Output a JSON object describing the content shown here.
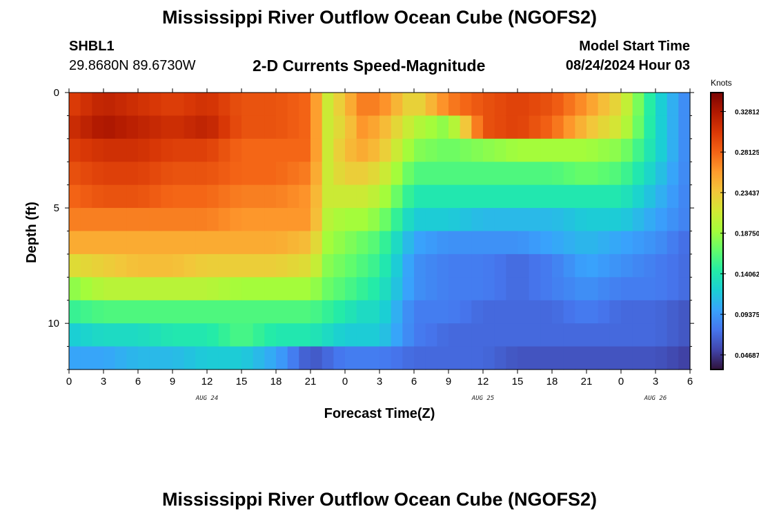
{
  "header": {
    "title": "Mississippi River Outflow Ocean Cube (NGOFS2)",
    "station": "SHBL1",
    "coordinates": "29.8680N  89.6730W",
    "subtitle": "2-D Currents Speed-Magnitude",
    "model_start_label": "Model Start Time",
    "model_start_value": "08/24/2024 Hour 03"
  },
  "footer": {
    "title": "Mississippi River Outflow Ocean Cube (NGOFS2)"
  },
  "chart_data": {
    "type": "heatmap",
    "title": "2-D Currents Speed-Magnitude",
    "xlabel": "Forecast Time(Z)",
    "ylabel": "Depth (ft)",
    "colorbar_label": "Knots",
    "x_hours": [
      0,
      3,
      6,
      9,
      12,
      15,
      18,
      21,
      24,
      27,
      30,
      33,
      36,
      39,
      42,
      45,
      48,
      51,
      54
    ],
    "x_tick_labels": [
      "0",
      "3",
      "6",
      "9",
      "12",
      "15",
      "18",
      "21",
      "0",
      "3",
      "6",
      "9",
      "12",
      "15",
      "18",
      "21",
      "0",
      "3",
      "6"
    ],
    "date_labels": [
      {
        "hour": 12,
        "text": "AUG 24"
      },
      {
        "hour": 36,
        "text": "AUG 25"
      },
      {
        "hour": 51,
        "text": "AUG 26"
      }
    ],
    "xlim": [
      0,
      54
    ],
    "ylim": [
      0,
      12
    ],
    "y_ticks": [
      0,
      5,
      10
    ],
    "y_tick_labels": [
      "0",
      "5",
      "10"
    ],
    "colorbar_ticks": [
      0.32812,
      0.28125,
      0.23437,
      0.1875,
      0.14062,
      0.09375,
      0.04687
    ],
    "colorbar_tick_labels": [
      "0.32812",
      "0.28125",
      "0.23437",
      "0.18750",
      "0.14062",
      "0.09375",
      "0.04687"
    ],
    "vmin": 0.03,
    "vmax": 0.35,
    "colormap": [
      "#30123b",
      "#4145ab",
      "#4675ed",
      "#39a2fc",
      "#1bcfd4",
      "#24eca6",
      "#61fc6c",
      "#a4fc3b",
      "#d1e834",
      "#f3c63a",
      "#fe9b2d",
      "#f36315",
      "#d93806",
      "#b11901",
      "#7a0403"
    ],
    "depth_layers": [
      0.5,
      1.5,
      2.5,
      3.5,
      4.5,
      5.5,
      6.5,
      7.5,
      8.5,
      9.5,
      10.5,
      11.5
    ],
    "speed_knots": [
      {
        "hour": 0,
        "values": [
          0.3,
          0.31,
          0.3,
          0.29,
          0.28,
          0.27,
          0.25,
          0.22,
          0.18,
          0.15,
          0.12,
          0.1
        ]
      },
      {
        "hour": 3,
        "values": [
          0.32,
          0.33,
          0.31,
          0.3,
          0.29,
          0.27,
          0.25,
          0.23,
          0.2,
          0.16,
          0.13,
          0.1
        ]
      },
      {
        "hour": 6,
        "values": [
          0.31,
          0.32,
          0.31,
          0.3,
          0.29,
          0.27,
          0.25,
          0.24,
          0.2,
          0.16,
          0.13,
          0.11
        ]
      },
      {
        "hour": 9,
        "values": [
          0.3,
          0.31,
          0.3,
          0.29,
          0.28,
          0.27,
          0.25,
          0.24,
          0.2,
          0.16,
          0.14,
          0.11
        ]
      },
      {
        "hour": 12,
        "values": [
          0.31,
          0.32,
          0.3,
          0.29,
          0.28,
          0.27,
          0.25,
          0.23,
          0.2,
          0.16,
          0.14,
          0.12
        ]
      },
      {
        "hour": 15,
        "values": [
          0.29,
          0.29,
          0.28,
          0.28,
          0.27,
          0.26,
          0.25,
          0.23,
          0.19,
          0.16,
          0.16,
          0.12
        ]
      },
      {
        "hour": 18,
        "values": [
          0.29,
          0.29,
          0.28,
          0.28,
          0.27,
          0.26,
          0.25,
          0.23,
          0.19,
          0.16,
          0.14,
          0.1
        ]
      },
      {
        "hour": 21,
        "values": [
          0.28,
          0.28,
          0.28,
          0.27,
          0.26,
          0.26,
          0.24,
          0.22,
          0.19,
          0.16,
          0.14,
          0.06
        ]
      },
      {
        "hour": 22.5,
        "values": [
          0.21,
          0.21,
          0.21,
          0.21,
          0.21,
          0.2,
          0.19,
          0.18,
          0.17,
          0.15,
          0.13,
          0.07
        ]
      },
      {
        "hour": 24,
        "values": [
          0.24,
          0.23,
          0.24,
          0.23,
          0.21,
          0.19,
          0.18,
          0.17,
          0.16,
          0.14,
          0.12,
          0.08
        ]
      },
      {
        "hour": 25.5,
        "values": [
          0.27,
          0.26,
          0.25,
          0.23,
          0.21,
          0.19,
          0.17,
          0.16,
          0.15,
          0.13,
          0.12,
          0.08
        ]
      },
      {
        "hour": 27,
        "values": [
          0.27,
          0.25,
          0.24,
          0.22,
          0.2,
          0.18,
          0.16,
          0.15,
          0.14,
          0.13,
          0.12,
          0.08
        ]
      },
      {
        "hour": 30,
        "values": [
          0.22,
          0.2,
          0.18,
          0.16,
          0.14,
          0.12,
          0.1,
          0.09,
          0.09,
          0.08,
          0.08,
          0.07
        ]
      },
      {
        "hour": 33,
        "values": [
          0.27,
          0.18,
          0.17,
          0.16,
          0.14,
          0.12,
          0.09,
          0.08,
          0.08,
          0.08,
          0.07,
          0.07
        ]
      },
      {
        "hour": 36,
        "values": [
          0.29,
          0.29,
          0.18,
          0.16,
          0.14,
          0.11,
          0.09,
          0.08,
          0.08,
          0.07,
          0.07,
          0.07
        ]
      },
      {
        "hour": 39,
        "values": [
          0.3,
          0.3,
          0.19,
          0.16,
          0.14,
          0.11,
          0.09,
          0.07,
          0.07,
          0.07,
          0.07,
          0.06
        ]
      },
      {
        "hour": 42,
        "values": [
          0.29,
          0.28,
          0.19,
          0.16,
          0.14,
          0.11,
          0.1,
          0.08,
          0.08,
          0.07,
          0.07,
          0.06
        ]
      },
      {
        "hour": 45,
        "values": [
          0.26,
          0.24,
          0.19,
          0.17,
          0.14,
          0.12,
          0.11,
          0.1,
          0.09,
          0.08,
          0.07,
          0.06
        ]
      },
      {
        "hour": 48,
        "values": [
          0.22,
          0.21,
          0.18,
          0.16,
          0.14,
          0.12,
          0.1,
          0.09,
          0.08,
          0.07,
          0.07,
          0.06
        ]
      },
      {
        "hour": 51,
        "values": [
          0.13,
          0.13,
          0.13,
          0.12,
          0.11,
          0.1,
          0.09,
          0.08,
          0.08,
          0.07,
          0.07,
          0.06
        ]
      },
      {
        "hour": 54,
        "values": [
          0.08,
          0.08,
          0.08,
          0.08,
          0.08,
          0.08,
          0.07,
          0.07,
          0.07,
          0.06,
          0.06,
          0.05
        ]
      }
    ]
  }
}
